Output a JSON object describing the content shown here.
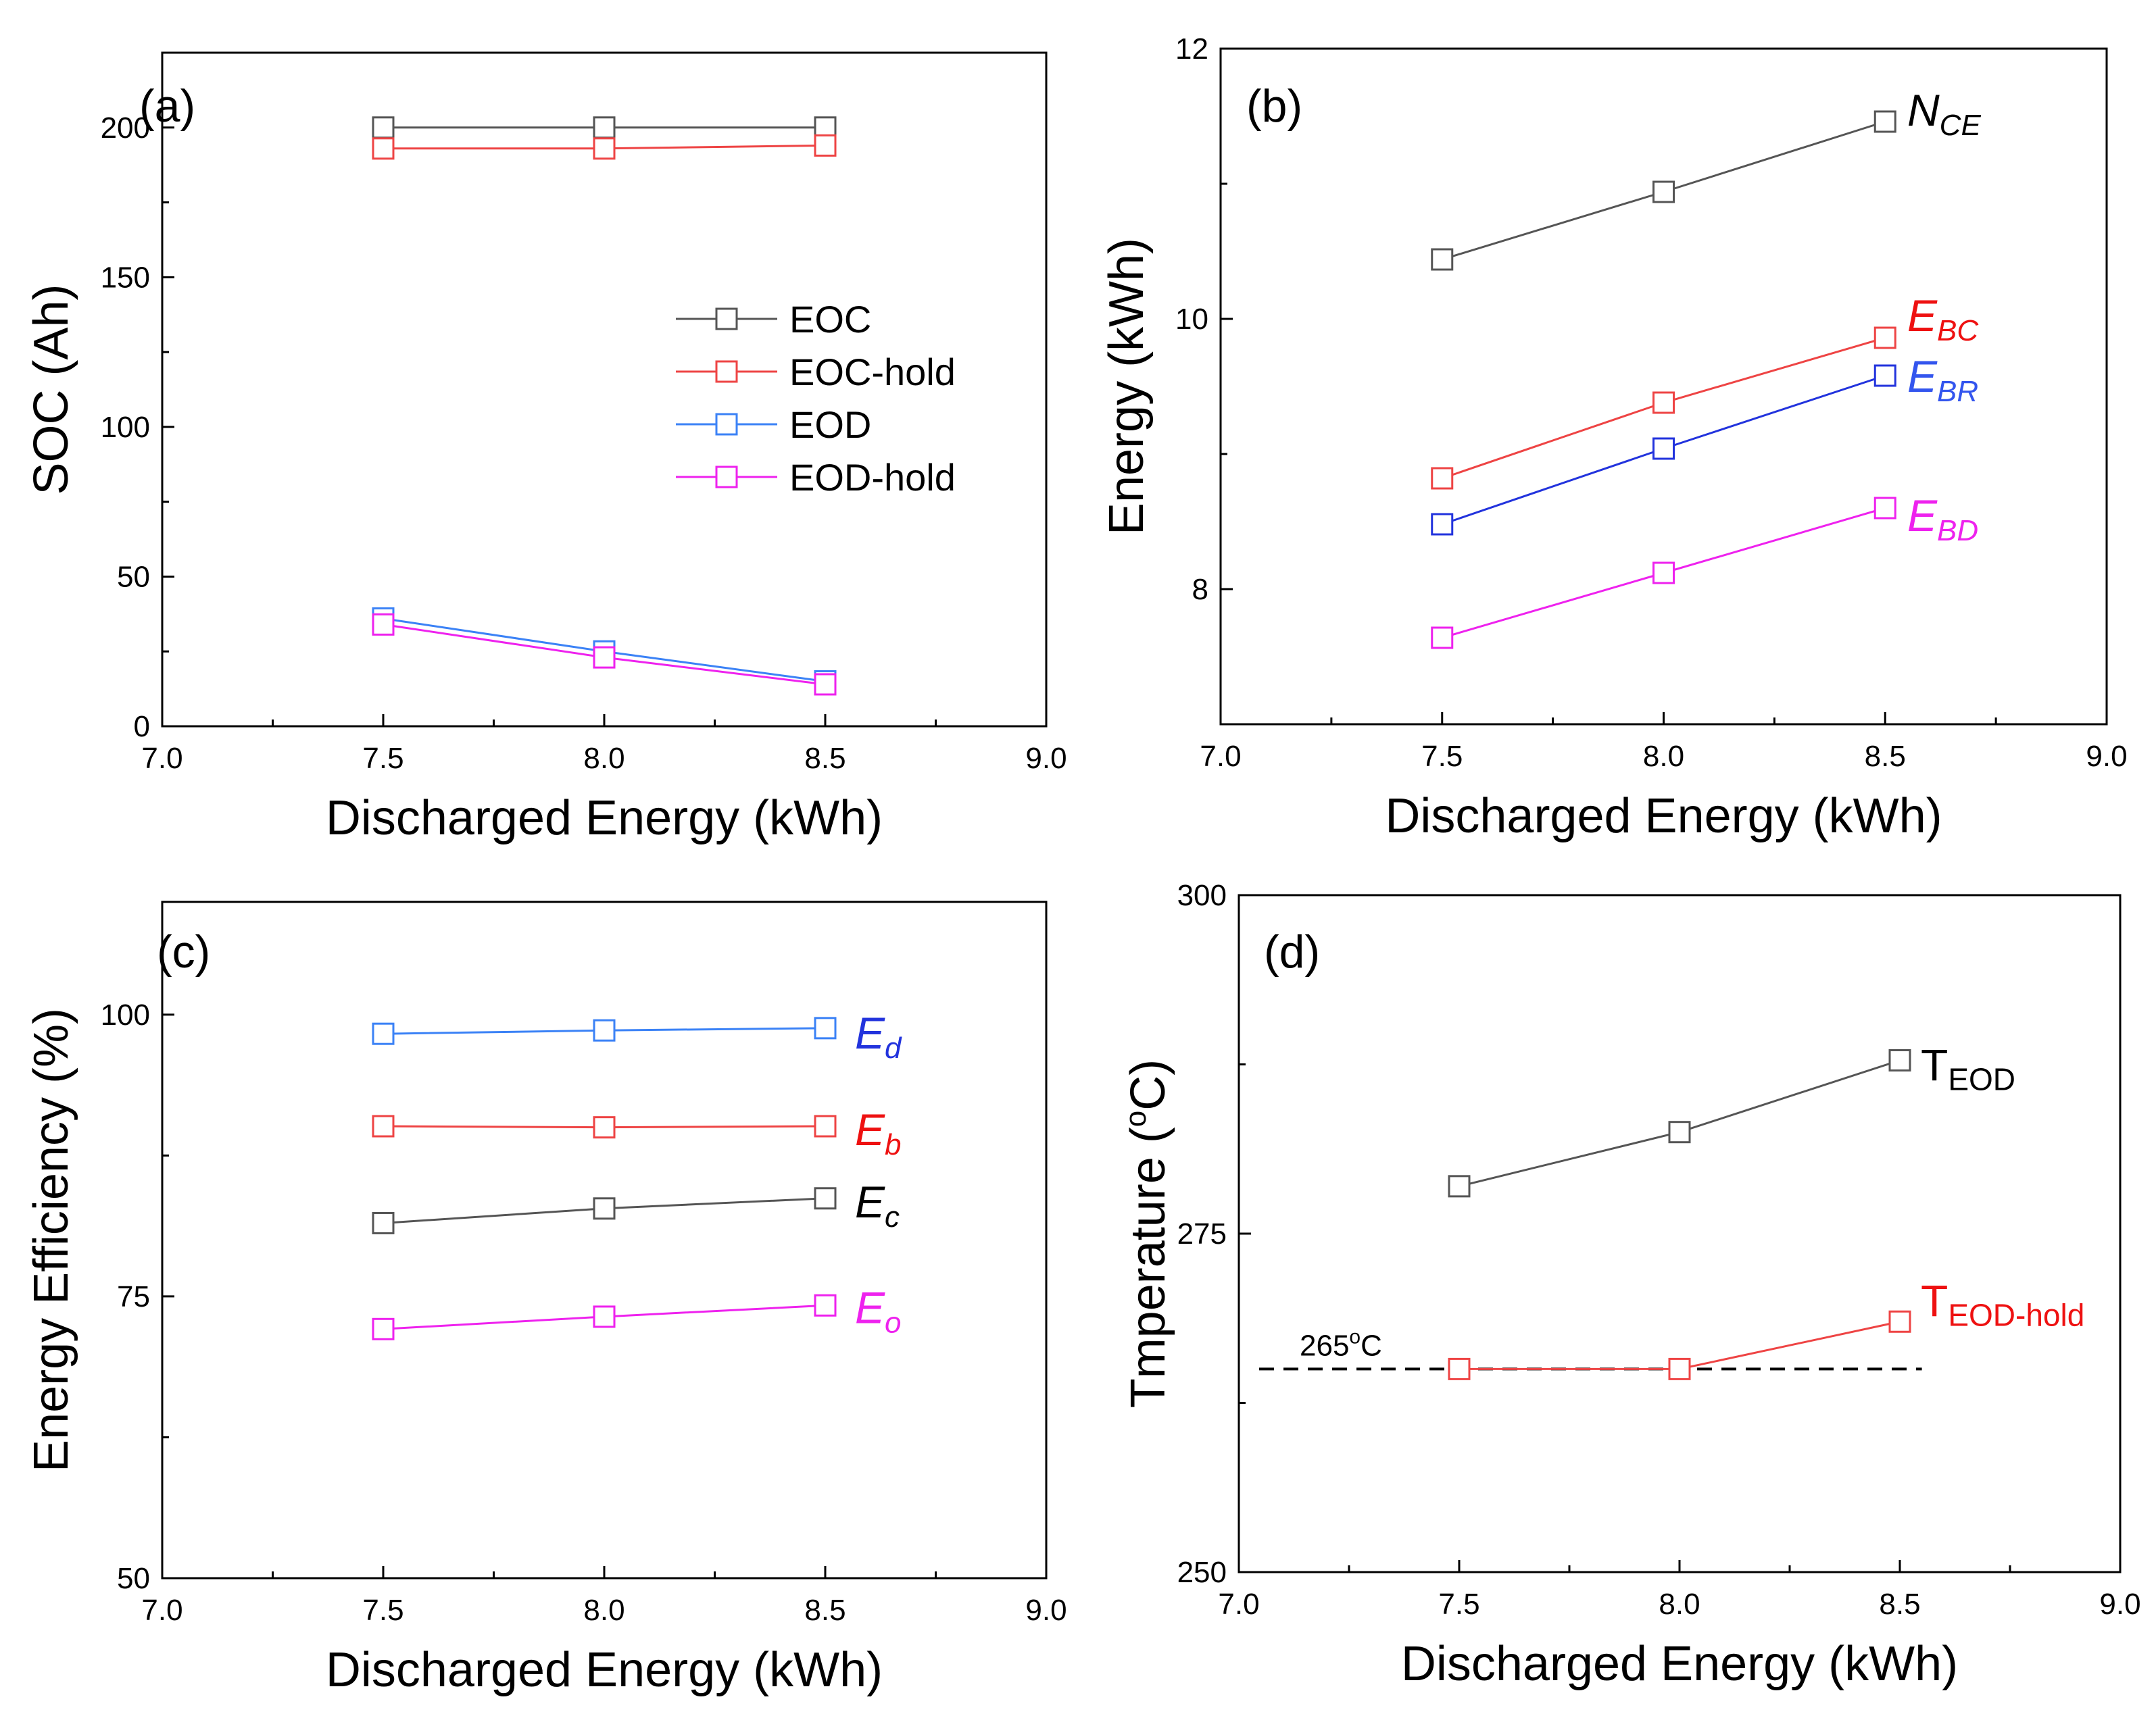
{
  "chart_data": [
    {
      "type": "line",
      "panel": "(a)",
      "xlabel": "Discharged Energy (kWh)",
      "ylabel": "SOC (Ah)",
      "xlim": [
        7.0,
        9.0
      ],
      "ylim": [
        0,
        225
      ],
      "xticks": [
        "7.0",
        "7.5",
        "8.0",
        "8.5",
        "9.0"
      ],
      "yticks": [
        "0",
        "50",
        "100",
        "150",
        "200"
      ],
      "x": [
        7.5,
        8.0,
        8.5
      ],
      "legend": "center-right",
      "series": [
        {
          "name": "EOC",
          "color": "#555555",
          "values": [
            200,
            200,
            200
          ]
        },
        {
          "name": "EOC-hold",
          "color": "#ee4444",
          "values": [
            193,
            193,
            194
          ]
        },
        {
          "name": "EOD",
          "color": "#3b82f6",
          "values": [
            36,
            25,
            15
          ]
        },
        {
          "name": "EOD-hold",
          "color": "#ee22ee",
          "values": [
            34,
            23,
            14
          ]
        }
      ]
    },
    {
      "type": "line",
      "panel": "(b)",
      "xlabel": "Discharged Energy (kWh)",
      "ylabel": "Energy (kWh)",
      "xlim": [
        7.0,
        9.0
      ],
      "ylim": [
        7.0,
        12.0
      ],
      "xticks": [
        "7.0",
        "7.5",
        "8.0",
        "8.5",
        "9.0"
      ],
      "yticks": [
        "8",
        "10",
        "12"
      ],
      "x": [
        7.5,
        8.0,
        8.5
      ],
      "series": [
        {
          "name": "N",
          "sub": "CE",
          "color": "#555555",
          "labelColor": "#000000",
          "values": [
            10.44,
            10.94,
            11.46
          ]
        },
        {
          "name": "E",
          "sub": "BC",
          "color": "#ee4444",
          "labelColor": "#ee1111",
          "values": [
            8.82,
            9.38,
            9.86
          ]
        },
        {
          "name": "E",
          "sub": "BR",
          "color": "#2233dd",
          "labelColor": "#3355ee",
          "values": [
            8.48,
            9.04,
            9.58
          ]
        },
        {
          "name": "E",
          "sub": "BD",
          "color": "#ee22ee",
          "labelColor": "#ee22ee",
          "values": [
            7.64,
            8.12,
            8.6
          ]
        }
      ]
    },
    {
      "type": "line",
      "panel": "(c)",
      "xlabel": "Discharged Energy (kWh)",
      "ylabel": "Energy Efficiency (%)",
      "xlim": [
        7.0,
        9.0
      ],
      "ylim": [
        50,
        110
      ],
      "xticks": [
        "7.0",
        "7.5",
        "8.0",
        "8.5",
        "9.0"
      ],
      "yticks": [
        "50",
        "75",
        "100"
      ],
      "x": [
        7.5,
        8.0,
        8.5
      ],
      "series": [
        {
          "name": "E",
          "sub": "d",
          "color": "#3b82f6",
          "labelColor": "#2233dd",
          "values": [
            98.3,
            98.6,
            98.8
          ]
        },
        {
          "name": "E",
          "sub": "b",
          "color": "#ee4444",
          "labelColor": "#ee1111",
          "values": [
            90.1,
            90.0,
            90.1
          ]
        },
        {
          "name": "E",
          "sub": "c",
          "color": "#555555",
          "labelColor": "#000000",
          "values": [
            81.5,
            82.8,
            83.7
          ]
        },
        {
          "name": "E",
          "sub": "o",
          "color": "#ee22ee",
          "labelColor": "#ee22ee",
          "values": [
            72.1,
            73.2,
            74.2
          ]
        }
      ]
    },
    {
      "type": "line",
      "panel": "(d)",
      "xlabel": "Discharged Energy (kWh)",
      "ylabel_main": "Tmperature (",
      "ylabel_sup": "o",
      "ylabel_end": "C)",
      "xlim": [
        7.0,
        9.0
      ],
      "ylim": [
        250,
        300
      ],
      "xticks": [
        "7.0",
        "7.5",
        "8.0",
        "8.5",
        "9.0"
      ],
      "yticks": [
        "250",
        "275",
        "300"
      ],
      "x": [
        7.5,
        8.0,
        8.5
      ],
      "reference_line": {
        "value": 265,
        "x_range": [
          7.0,
          8.55
        ],
        "label": "265",
        "label_sup": "o",
        "label_end": "C"
      },
      "series": [
        {
          "name": "T",
          "sub": "EOD",
          "color": "#555555",
          "labelColor": "#000000",
          "values": [
            278.5,
            282.5,
            287.8
          ]
        },
        {
          "name": "T",
          "sub": "EOD-hold",
          "color": "#ee4444",
          "labelColor": "#ee1111",
          "values": [
            265.0,
            265.0,
            268.5
          ]
        }
      ]
    }
  ]
}
